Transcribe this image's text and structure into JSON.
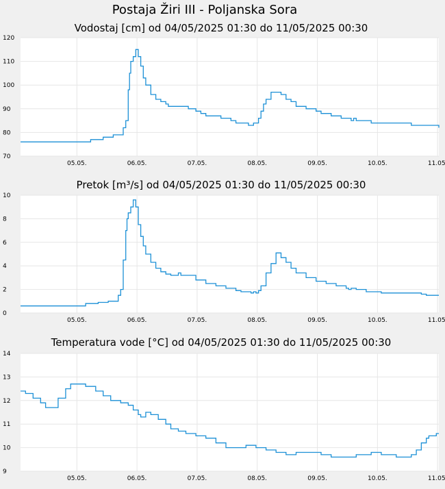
{
  "page": {
    "title": "Postaja Žiri III - Poljanska Sora"
  },
  "style": {
    "line_color": "#1a8fd6",
    "plot_bg": "#ffffff",
    "page_bg": "#f0f0f0",
    "grid_color": "#e6e6e6"
  },
  "chart_data": [
    {
      "type": "line",
      "title": "Vodostaj [cm] od 04/05/2025 01:30 do 11/05/2025 00:30",
      "xlabel": "",
      "ylabel": "",
      "xlim": [
        0,
        167
      ],
      "ylim": [
        70,
        120
      ],
      "yticks": [
        70,
        80,
        90,
        100,
        110,
        120
      ],
      "grid": true,
      "x_ticks": [
        {
          "x": 22.5,
          "label": "05.05."
        },
        {
          "x": 46.5,
          "label": "06.05."
        },
        {
          "x": 70.5,
          "label": "07.05."
        },
        {
          "x": 94.5,
          "label": "08.05."
        },
        {
          "x": 118.5,
          "label": "09.05."
        },
        {
          "x": 142.5,
          "label": "10.05."
        },
        {
          "x": 166.5,
          "label": "11.05."
        }
      ],
      "series": [
        {
          "x": [
            0,
            18,
            27,
            28,
            32,
            33,
            36,
            37,
            40,
            41,
            42,
            43,
            43.5,
            44,
            45,
            46,
            47,
            48,
            49,
            50,
            52,
            54,
            56,
            58,
            59,
            60,
            62,
            64,
            65,
            67,
            68,
            70,
            72,
            74,
            76,
            80,
            84,
            86,
            88,
            90,
            91,
            92,
            93,
            94,
            95,
            96,
            97,
            98,
            100,
            104,
            106,
            108,
            110,
            114,
            118,
            120,
            124,
            128,
            131,
            132,
            133,
            134,
            136,
            140,
            146,
            156,
            162,
            167
          ],
          "y": [
            76,
            76,
            76,
            77,
            77,
            78,
            78,
            79,
            79,
            82,
            85,
            98,
            105,
            110,
            112,
            115,
            112,
            108,
            103,
            100,
            96,
            94,
            93,
            92,
            91,
            91,
            91,
            91,
            91,
            90,
            90,
            89,
            88,
            87,
            87,
            86,
            85,
            84,
            84,
            84,
            83,
            83,
            84,
            84,
            86,
            89,
            92,
            94,
            97,
            96,
            94,
            93,
            91,
            90,
            89,
            88,
            87,
            86,
            86,
            85,
            86,
            85,
            85,
            84,
            84,
            83,
            83,
            82
          ]
        }
      ]
    },
    {
      "type": "line",
      "title": "Pretok [m³/s] od 04/05/2025 01:30 do 11/05/2025 00:30",
      "xlabel": "",
      "ylabel": "",
      "xlim": [
        0,
        167
      ],
      "ylim": [
        0,
        10
      ],
      "yticks": [
        0,
        2,
        4,
        6,
        8,
        10
      ],
      "grid": true,
      "x_ticks": [
        {
          "x": 22.5,
          "label": "05.05."
        },
        {
          "x": 46.5,
          "label": "06.05."
        },
        {
          "x": 70.5,
          "label": "07.05."
        },
        {
          "x": 94.5,
          "label": "08.05."
        },
        {
          "x": 118.5,
          "label": "09.05."
        },
        {
          "x": 142.5,
          "label": "10.05."
        },
        {
          "x": 166.5,
          "label": "11.05."
        }
      ],
      "series": [
        {
          "x": [
            0,
            18,
            25,
            26,
            30,
            31,
            34,
            35,
            38,
            39,
            40,
            41,
            42,
            42.5,
            43,
            44,
            45,
            46,
            47,
            48,
            49,
            50,
            52,
            54,
            56,
            58,
            60,
            62,
            63,
            64,
            66,
            70,
            74,
            78,
            82,
            86,
            88,
            90,
            91,
            92,
            93,
            94,
            95,
            96,
            98,
            100,
            102,
            104,
            106,
            108,
            110,
            114,
            118,
            122,
            126,
            130,
            131,
            132,
            134,
            138,
            144,
            152,
            160,
            162,
            167
          ],
          "y": [
            0.6,
            0.6,
            0.6,
            0.8,
            0.8,
            0.9,
            0.9,
            1.0,
            1.0,
            1.5,
            2.0,
            4.5,
            7.0,
            8.0,
            8.5,
            9.0,
            9.6,
            9.0,
            7.5,
            6.5,
            5.7,
            5.0,
            4.3,
            3.8,
            3.5,
            3.3,
            3.2,
            3.2,
            3.4,
            3.2,
            3.2,
            2.8,
            2.5,
            2.3,
            2.1,
            1.9,
            1.8,
            1.8,
            1.8,
            1.7,
            1.8,
            1.7,
            1.9,
            2.3,
            3.4,
            4.2,
            5.1,
            4.7,
            4.3,
            3.8,
            3.4,
            3.0,
            2.7,
            2.5,
            2.3,
            2.1,
            2.0,
            2.1,
            2.0,
            1.8,
            1.7,
            1.7,
            1.6,
            1.5,
            1.5
          ]
        }
      ]
    },
    {
      "type": "line",
      "title": "Temperatura vode [°C] od 04/05/2025 01:30 do 11/05/2025 00:30",
      "xlabel": "",
      "ylabel": "",
      "xlim": [
        0,
        167
      ],
      "ylim": [
        9,
        14
      ],
      "yticks": [
        9,
        10,
        11,
        12,
        13,
        14
      ],
      "grid": true,
      "x_ticks": [
        {
          "x": 22.5,
          "label": "05.05."
        },
        {
          "x": 46.5,
          "label": "06.05."
        },
        {
          "x": 70.5,
          "label": "07.05."
        },
        {
          "x": 94.5,
          "label": "08.05."
        },
        {
          "x": 118.5,
          "label": "09.05."
        },
        {
          "x": 142.5,
          "label": "10.05."
        },
        {
          "x": 166.5,
          "label": "11.05."
        }
      ],
      "series": [
        {
          "x": [
            0,
            2,
            5,
            8,
            10,
            12,
            15,
            18,
            20,
            22,
            23,
            26,
            30,
            33,
            36,
            40,
            43,
            45,
            47,
            48,
            50,
            52,
            55,
            58,
            60,
            63,
            66,
            70,
            74,
            78,
            82,
            86,
            88,
            90,
            94,
            98,
            102,
            106,
            110,
            114,
            120,
            124,
            130,
            134,
            140,
            144,
            146,
            150,
            154,
            156,
            158,
            160,
            162,
            163,
            166,
            167
          ],
          "y": [
            12.4,
            12.3,
            12.1,
            11.9,
            11.7,
            11.7,
            12.1,
            12.5,
            12.7,
            12.7,
            12.7,
            12.6,
            12.4,
            12.2,
            12.0,
            11.9,
            11.8,
            11.6,
            11.4,
            11.3,
            11.5,
            11.4,
            11.2,
            11.0,
            10.8,
            10.7,
            10.6,
            10.5,
            10.4,
            10.2,
            10.0,
            10.0,
            10.0,
            10.1,
            10.0,
            9.9,
            9.8,
            9.7,
            9.8,
            9.8,
            9.7,
            9.6,
            9.6,
            9.7,
            9.8,
            9.7,
            9.7,
            9.6,
            9.6,
            9.7,
            9.9,
            10.2,
            10.4,
            10.5,
            10.6,
            10.6
          ]
        }
      ]
    }
  ]
}
